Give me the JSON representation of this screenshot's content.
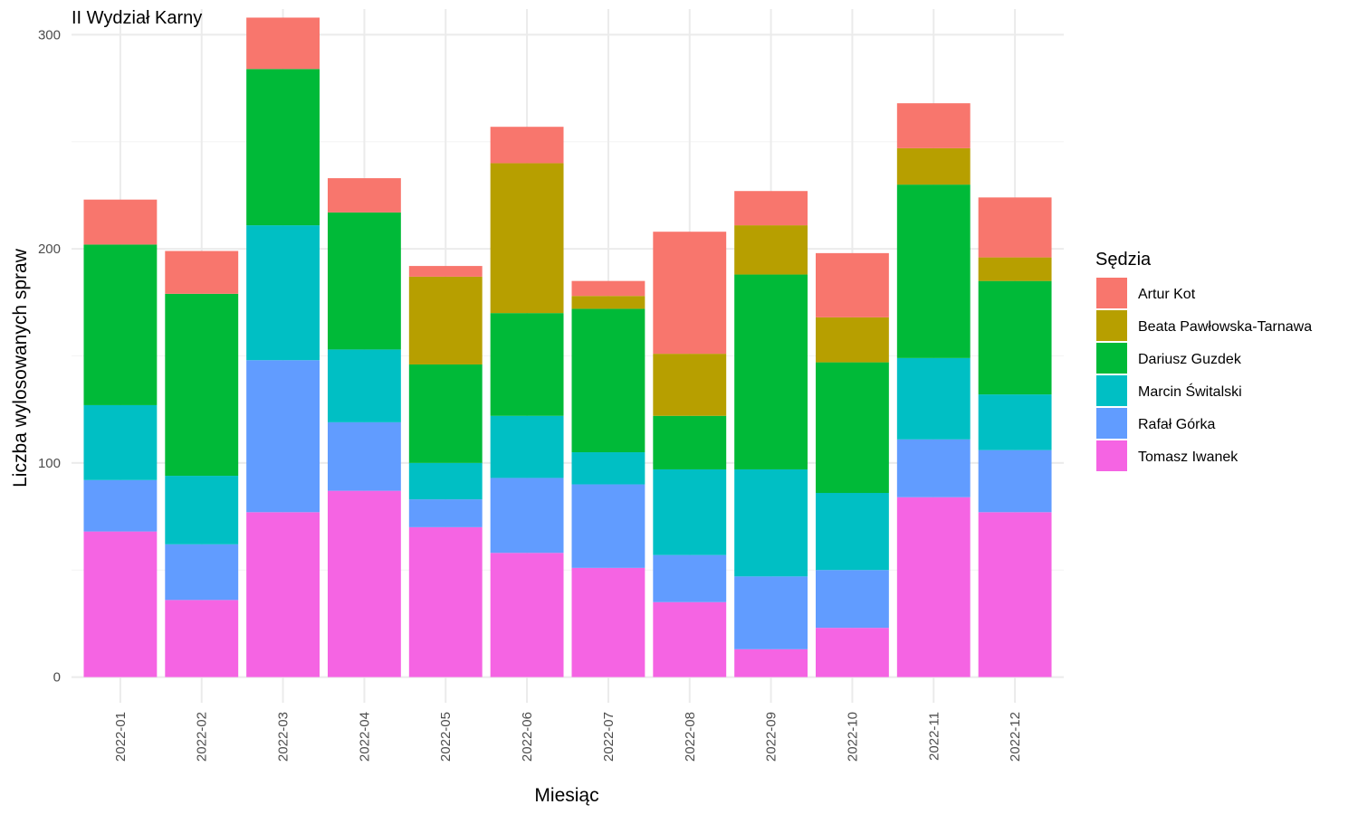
{
  "chart_data": {
    "type": "bar",
    "stacked": true,
    "title": "II Wydział Karny",
    "xlabel": "Miesiąc",
    "ylabel": "Liczba wylosowanych spraw",
    "ylim": [
      -12,
      312
    ],
    "yticks": [
      0,
      100,
      200,
      300
    ],
    "grid": true,
    "legend_position": "right",
    "legend_title": "Sędzia",
    "categories": [
      "2022-01",
      "2022-02",
      "2022-03",
      "2022-04",
      "2022-05",
      "2022-06",
      "2022-07",
      "2022-08",
      "2022-09",
      "2022-10",
      "2022-11",
      "2022-12"
    ],
    "series": [
      {
        "name": "Tomasz Iwanek",
        "color": "#F564E3",
        "values": [
          68,
          36,
          77,
          87,
          70,
          58,
          51,
          35,
          13,
          23,
          84,
          77
        ]
      },
      {
        "name": "Rafał Górka",
        "color": "#619CFF",
        "values": [
          24,
          26,
          71,
          32,
          13,
          35,
          39,
          22,
          34,
          27,
          27,
          29
        ]
      },
      {
        "name": "Marcin Świtalski",
        "color": "#00BFC4",
        "values": [
          35,
          32,
          63,
          34,
          17,
          29,
          15,
          40,
          50,
          36,
          38,
          26
        ]
      },
      {
        "name": "Dariusz Guzdek",
        "color": "#00BA38",
        "values": [
          75,
          85,
          73,
          64,
          46,
          48,
          67,
          25,
          91,
          61,
          81,
          53
        ]
      },
      {
        "name": "Beata Pawłowska-Tarnawa",
        "color": "#B79F00",
        "values": [
          0,
          0,
          0,
          0,
          41,
          70,
          6,
          29,
          23,
          21,
          17,
          11
        ]
      },
      {
        "name": "Artur Kot",
        "color": "#F8766D",
        "values": [
          21,
          20,
          24,
          16,
          5,
          17,
          7,
          57,
          16,
          30,
          21,
          28
        ]
      }
    ],
    "legend_order": [
      "Artur Kot",
      "Beata Pawłowska-Tarnawa",
      "Dariusz Guzdek",
      "Marcin Świtalski",
      "Rafał Górka",
      "Tomasz Iwanek"
    ]
  }
}
